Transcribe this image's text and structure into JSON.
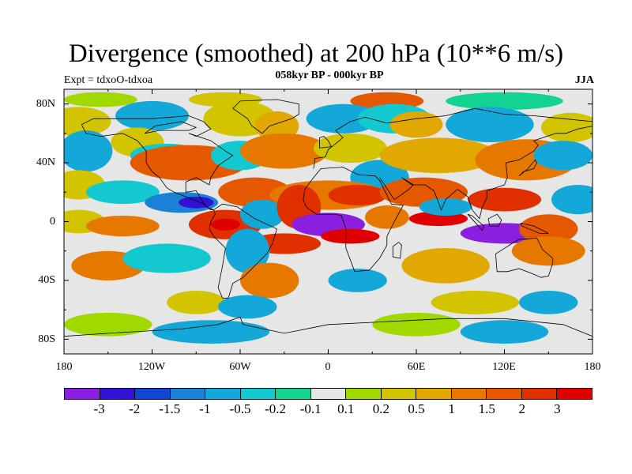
{
  "title": "Divergence (smoothed) at 200 hPa (10**6 m/s)",
  "subtitle": "058kyr BP - 000kyr BP",
  "experiment": "Expt = tdxoO-tdxoa",
  "season": "JJA",
  "y_ticks": [
    "80N",
    "40N",
    "0",
    "40S",
    "80S"
  ],
  "x_ticks": [
    "180",
    "120W",
    "60W",
    "0",
    "60E",
    "120E",
    "180"
  ],
  "colorbar": {
    "colors": [
      "#8a1fe0",
      "#3311d4",
      "#1146d0",
      "#1a82d6",
      "#14a8d8",
      "#14c8d0",
      "#14d290",
      "#e6e6e6",
      "#a0d800",
      "#d2c400",
      "#e0a800",
      "#e67800",
      "#e45800",
      "#e03000",
      "#e00000"
    ],
    "labels": [
      "-3",
      "-2",
      "-1.5",
      "-1",
      "-0.5",
      "-0.2",
      "-0.1",
      "0.1",
      "0.2",
      "0.5",
      "1",
      "1.5",
      "2",
      "3"
    ]
  },
  "map": {
    "background_color": "#e6e6e6",
    "features": [
      {
        "level": 8,
        "lon": -155,
        "lat": 83,
        "rx": 25,
        "ry": 5
      },
      {
        "level": 9,
        "lon": -70,
        "lat": 83,
        "rx": 25,
        "ry": 5
      },
      {
        "level": 12,
        "lon": 40,
        "lat": 82,
        "rx": 25,
        "ry": 6
      },
      {
        "level": 6,
        "lon": 120,
        "lat": 82,
        "rx": 40,
        "ry": 6
      },
      {
        "level": 9,
        "lon": -170,
        "lat": 68,
        "rx": 22,
        "ry": 10
      },
      {
        "level": 4,
        "lon": -120,
        "lat": 72,
        "rx": 25,
        "ry": 10
      },
      {
        "level": 9,
        "lon": -60,
        "lat": 70,
        "rx": 25,
        "ry": 12
      },
      {
        "level": 10,
        "lon": -35,
        "lat": 65,
        "rx": 15,
        "ry": 10
      },
      {
        "level": 4,
        "lon": 10,
        "lat": 70,
        "rx": 25,
        "ry": 10
      },
      {
        "level": 5,
        "lon": 45,
        "lat": 70,
        "rx": 25,
        "ry": 10
      },
      {
        "level": 10,
        "lon": 60,
        "lat": 66,
        "rx": 18,
        "ry": 9
      },
      {
        "level": 4,
        "lon": 110,
        "lat": 66,
        "rx": 30,
        "ry": 12
      },
      {
        "level": 9,
        "lon": 165,
        "lat": 64,
        "rx": 20,
        "ry": 10
      },
      {
        "level": 4,
        "lon": -165,
        "lat": 48,
        "rx": 18,
        "ry": 14
      },
      {
        "level": 9,
        "lon": -130,
        "lat": 54,
        "rx": 18,
        "ry": 10
      },
      {
        "level": 5,
        "lon": -110,
        "lat": 45,
        "rx": 25,
        "ry": 8
      },
      {
        "level": 12,
        "lon": -95,
        "lat": 40,
        "rx": 40,
        "ry": 12
      },
      {
        "level": 5,
        "lon": -60,
        "lat": 45,
        "rx": 20,
        "ry": 10
      },
      {
        "level": 11,
        "lon": -30,
        "lat": 48,
        "rx": 30,
        "ry": 12
      },
      {
        "level": 9,
        "lon": 15,
        "lat": 50,
        "rx": 25,
        "ry": 10
      },
      {
        "level": 4,
        "lon": 35,
        "lat": 30,
        "rx": 20,
        "ry": 12
      },
      {
        "level": 10,
        "lon": 75,
        "lat": 45,
        "rx": 40,
        "ry": 12
      },
      {
        "level": 11,
        "lon": 135,
        "lat": 42,
        "rx": 35,
        "ry": 14
      },
      {
        "level": 4,
        "lon": 160,
        "lat": 45,
        "rx": 20,
        "ry": 10
      },
      {
        "level": 9,
        "lon": -170,
        "lat": 25,
        "rx": 18,
        "ry": 10
      },
      {
        "level": 5,
        "lon": -140,
        "lat": 20,
        "rx": 25,
        "ry": 8
      },
      {
        "level": 3,
        "lon": -100,
        "lat": 13,
        "rx": 25,
        "ry": 7
      },
      {
        "level": 1,
        "lon": -90,
        "lat": 13,
        "rx": 12,
        "ry": 4
      },
      {
        "level": 12,
        "lon": -50,
        "lat": 20,
        "rx": 25,
        "ry": 10
      },
      {
        "level": 11,
        "lon": 0,
        "lat": 18,
        "rx": 40,
        "ry": 10
      },
      {
        "level": 13,
        "lon": 20,
        "lat": 18,
        "rx": 20,
        "ry": 7
      },
      {
        "level": 12,
        "lon": 65,
        "lat": 20,
        "rx": 30,
        "ry": 10
      },
      {
        "level": 13,
        "lon": 120,
        "lat": 15,
        "rx": 25,
        "ry": 8
      },
      {
        "level": 4,
        "lon": 170,
        "lat": 15,
        "rx": 18,
        "ry": 10
      },
      {
        "level": 9,
        "lon": -170,
        "lat": 0,
        "rx": 18,
        "ry": 8
      },
      {
        "level": 11,
        "lon": -140,
        "lat": -3,
        "rx": 25,
        "ry": 7
      },
      {
        "level": 13,
        "lon": -70,
        "lat": -2,
        "rx": 25,
        "ry": 10
      },
      {
        "level": 14,
        "lon": -70,
        "lat": -2,
        "rx": 10,
        "ry": 4
      },
      {
        "level": 4,
        "lon": -45,
        "lat": 5,
        "rx": 15,
        "ry": 10
      },
      {
        "level": 13,
        "lon": -20,
        "lat": 10,
        "rx": 15,
        "ry": 15
      },
      {
        "level": 0,
        "lon": 0,
        "lat": -2,
        "rx": 25,
        "ry": 8
      },
      {
        "level": 14,
        "lon": 15,
        "lat": -10,
        "rx": 20,
        "ry": 5
      },
      {
        "level": 11,
        "lon": 40,
        "lat": 3,
        "rx": 15,
        "ry": 8
      },
      {
        "level": 14,
        "lon": 75,
        "lat": 2,
        "rx": 20,
        "ry": 5
      },
      {
        "level": 4,
        "lon": 80,
        "lat": 10,
        "rx": 18,
        "ry": 6
      },
      {
        "level": 0,
        "lon": 120,
        "lat": -8,
        "rx": 30,
        "ry": 7
      },
      {
        "level": 12,
        "lon": 150,
        "lat": -5,
        "rx": 20,
        "ry": 10
      },
      {
        "level": 13,
        "lon": -30,
        "lat": -15,
        "rx": 25,
        "ry": 7
      },
      {
        "level": 4,
        "lon": -55,
        "lat": -20,
        "rx": 15,
        "ry": 15
      },
      {
        "level": 11,
        "lon": -150,
        "lat": -30,
        "rx": 25,
        "ry": 10
      },
      {
        "level": 5,
        "lon": -110,
        "lat": -25,
        "rx": 30,
        "ry": 10
      },
      {
        "level": 11,
        "lon": -40,
        "lat": -40,
        "rx": 20,
        "ry": 12
      },
      {
        "level": 4,
        "lon": 20,
        "lat": -40,
        "rx": 20,
        "ry": 8
      },
      {
        "level": 10,
        "lon": 80,
        "lat": -30,
        "rx": 30,
        "ry": 12
      },
      {
        "level": 11,
        "lon": 150,
        "lat": -20,
        "rx": 25,
        "ry": 10
      },
      {
        "level": 9,
        "lon": -90,
        "lat": -55,
        "rx": 20,
        "ry": 8
      },
      {
        "level": 4,
        "lon": -55,
        "lat": -58,
        "rx": 20,
        "ry": 8
      },
      {
        "level": 9,
        "lon": 100,
        "lat": -55,
        "rx": 30,
        "ry": 8
      },
      {
        "level": 4,
        "lon": 150,
        "lat": -55,
        "rx": 20,
        "ry": 8
      },
      {
        "level": 8,
        "lon": -150,
        "lat": -70,
        "rx": 30,
        "ry": 8
      },
      {
        "level": 4,
        "lon": -80,
        "lat": -75,
        "rx": 40,
        "ry": 8
      },
      {
        "level": 8,
        "lon": 60,
        "lat": -70,
        "rx": 30,
        "ry": 8
      },
      {
        "level": 4,
        "lon": 120,
        "lat": -75,
        "rx": 30,
        "ry": 8
      }
    ],
    "coastlines": [
      [
        [
          -168,
          66
        ],
        [
          -160,
          70
        ],
        [
          -140,
          70
        ],
        [
          -120,
          70
        ],
        [
          -95,
          72
        ],
        [
          -85,
          68
        ],
        [
          -80,
          63
        ],
        [
          -90,
          58
        ],
        [
          -95,
          60
        ],
        [
          -80,
          55
        ],
        [
          -70,
          48
        ],
        [
          -65,
          45
        ],
        [
          -75,
          38
        ],
        [
          -80,
          30
        ],
        [
          -81,
          25
        ],
        [
          -90,
          30
        ],
        [
          -97,
          27
        ],
        [
          -97,
          20
        ],
        [
          -90,
          21
        ],
        [
          -87,
          16
        ],
        [
          -83,
          10
        ],
        [
          -78,
          8
        ],
        [
          -80,
          8
        ],
        [
          -85,
          12
        ],
        [
          -92,
          15
        ],
        [
          -105,
          20
        ],
        [
          -110,
          23
        ],
        [
          -115,
          30
        ],
        [
          -120,
          34
        ],
        [
          -124,
          40
        ],
        [
          -124,
          48
        ],
        [
          -130,
          55
        ],
        [
          -140,
          60
        ],
        [
          -155,
          58
        ],
        [
          -165,
          60
        ],
        [
          -168,
          66
        ]
      ],
      [
        [
          -78,
          8
        ],
        [
          -72,
          12
        ],
        [
          -62,
          10
        ],
        [
          -50,
          2
        ],
        [
          -35,
          -5
        ],
        [
          -38,
          -15
        ],
        [
          -42,
          -22
        ],
        [
          -48,
          -28
        ],
        [
          -58,
          -38
        ],
        [
          -65,
          -42
        ],
        [
          -68,
          -52
        ],
        [
          -72,
          -52
        ],
        [
          -75,
          -45
        ],
        [
          -72,
          -30
        ],
        [
          -70,
          -18
        ],
        [
          -78,
          -10
        ],
        [
          -81,
          -5
        ],
        [
          -80,
          0
        ],
        [
          -77,
          5
        ],
        [
          -78,
          8
        ]
      ],
      [
        [
          -17,
          15
        ],
        [
          -16,
          22
        ],
        [
          -10,
          30
        ],
        [
          -5,
          36
        ],
        [
          10,
          37
        ],
        [
          20,
          32
        ],
        [
          32,
          31
        ],
        [
          35,
          28
        ],
        [
          43,
          12
        ],
        [
          51,
          11
        ],
        [
          45,
          0
        ],
        [
          40,
          -10
        ],
        [
          40,
          -16
        ],
        [
          35,
          -25
        ],
        [
          28,
          -33
        ],
        [
          18,
          -34
        ],
        [
          12,
          -18
        ],
        [
          12,
          -5
        ],
        [
          9,
          4
        ],
        [
          5,
          5
        ],
        [
          -8,
          5
        ],
        [
          -15,
          10
        ],
        [
          -17,
          15
        ]
      ],
      [
        [
          -10,
          36
        ],
        [
          -9,
          43
        ],
        [
          -2,
          44
        ],
        [
          0,
          49
        ],
        [
          5,
          53
        ],
        [
          10,
          57
        ],
        [
          5,
          62
        ],
        [
          15,
          68
        ],
        [
          25,
          71
        ],
        [
          40,
          67
        ],
        [
          60,
          70
        ],
        [
          80,
          72
        ],
        [
          100,
          77
        ],
        [
          120,
          73
        ],
        [
          140,
          72
        ],
        [
          160,
          70
        ],
        [
          180,
          68
        ]
      ],
      [
        [
          35,
          30
        ],
        [
          45,
          15
        ],
        [
          55,
          22
        ],
        [
          58,
          25
        ],
        [
          50,
          30
        ],
        [
          57,
          25
        ],
        [
          66,
          25
        ],
        [
          72,
          21
        ],
        [
          77,
          8
        ],
        [
          80,
          15
        ],
        [
          88,
          22
        ],
        [
          95,
          17
        ],
        [
          98,
          8
        ],
        [
          103,
          2
        ],
        [
          105,
          10
        ],
        [
          108,
          16
        ],
        [
          108,
          21
        ],
        [
          120,
          25
        ],
        [
          122,
          30
        ],
        [
          121,
          40
        ],
        [
          130,
          42
        ],
        [
          140,
          48
        ],
        [
          143,
          52
        ],
        [
          140,
          55
        ],
        [
          155,
          60
        ],
        [
          162,
          60
        ],
        [
          170,
          63
        ],
        [
          180,
          65
        ]
      ],
      [
        [
          114,
          -22
        ],
        [
          115,
          -34
        ],
        [
          122,
          -34
        ],
        [
          130,
          -32
        ],
        [
          138,
          -35
        ],
        [
          145,
          -38
        ],
        [
          150,
          -37
        ],
        [
          153,
          -28
        ],
        [
          153,
          -25
        ],
        [
          146,
          -19
        ],
        [
          142,
          -11
        ],
        [
          135,
          -12
        ],
        [
          130,
          -12
        ],
        [
          125,
          -15
        ],
        [
          114,
          -22
        ]
      ],
      [
        [
          48,
          -14
        ],
        [
          50,
          -16
        ],
        [
          49,
          -25
        ],
        [
          44,
          -24
        ],
        [
          44,
          -17
        ],
        [
          48,
          -14
        ]
      ],
      [
        [
          -45,
          60
        ],
        [
          -52,
          65
        ],
        [
          -55,
          70
        ],
        [
          -65,
          77
        ],
        [
          -60,
          82
        ],
        [
          -35,
          83
        ],
        [
          -20,
          80
        ],
        [
          -20,
          73
        ],
        [
          -25,
          70
        ],
        [
          -40,
          65
        ],
        [
          -45,
          60
        ]
      ],
      [
        [
          95,
          5
        ],
        [
          105,
          -6
        ],
        [
          106,
          -3
        ],
        [
          98,
          4
        ],
        [
          95,
          5
        ]
      ],
      [
        [
          109,
          2
        ],
        [
          115,
          5
        ],
        [
          118,
          1
        ],
        [
          116,
          -3
        ],
        [
          110,
          -3
        ],
        [
          109,
          2
        ]
      ],
      [
        [
          131,
          -1
        ],
        [
          140,
          -3
        ],
        [
          150,
          -8
        ],
        [
          144,
          -8
        ],
        [
          132,
          -3
        ],
        [
          131,
          -1
        ]
      ],
      [
        [
          130,
          31
        ],
        [
          133,
          34
        ],
        [
          140,
          36
        ],
        [
          142,
          40
        ],
        [
          141,
          42
        ],
        [
          136,
          36
        ],
        [
          130,
          31
        ]
      ],
      [
        [
          -180,
          -78
        ],
        [
          -150,
          -76
        ],
        [
          -100,
          -73
        ],
        [
          -75,
          -70
        ],
        [
          -60,
          -65
        ],
        [
          -58,
          -70
        ],
        [
          -30,
          -76
        ],
        [
          0,
          -70
        ],
        [
          40,
          -68
        ],
        [
          80,
          -66
        ],
        [
          120,
          -66
        ],
        [
          160,
          -70
        ],
        [
          180,
          -78
        ]
      ],
      [
        [
          -6,
          50
        ],
        [
          2,
          51
        ],
        [
          0,
          55
        ],
        [
          -3,
          58
        ],
        [
          -6,
          57
        ],
        [
          -6,
          50
        ]
      ],
      [
        [
          -125,
          60
        ],
        [
          -118,
          65
        ],
        [
          -100,
          68
        ],
        [
          -90,
          64
        ],
        [
          -95,
          62
        ],
        [
          -115,
          62
        ],
        [
          -125,
          60
        ]
      ]
    ]
  }
}
